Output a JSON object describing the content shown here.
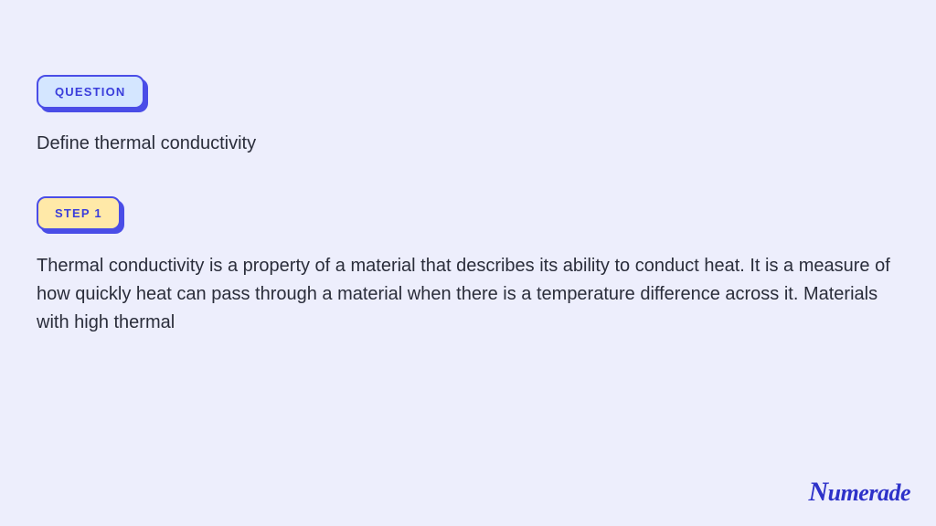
{
  "page": {
    "background_color": "#edeefc"
  },
  "question": {
    "badge_label": "QUESTION",
    "badge_bg": "#d4e6ff",
    "badge_border": "#4a4de7",
    "badge_shadow": "#4a4de7",
    "text": "Define thermal conductivity"
  },
  "step": {
    "badge_label": "STEP 1",
    "badge_bg": "#ffe9a8",
    "badge_border": "#4a4de7",
    "badge_shadow": "#4a4de7",
    "text": "Thermal conductivity is a property of a material that describes its ability to conduct heat. It is a measure of how quickly heat can pass through a material when there is a temperature difference across it. Materials with high thermal"
  },
  "brand": {
    "name": "Numerade",
    "color": "#2e32c9"
  },
  "typography": {
    "body_fontsize": 20,
    "badge_fontsize": 13,
    "brand_fontsize": 26,
    "text_color": "#2a2d3a"
  }
}
